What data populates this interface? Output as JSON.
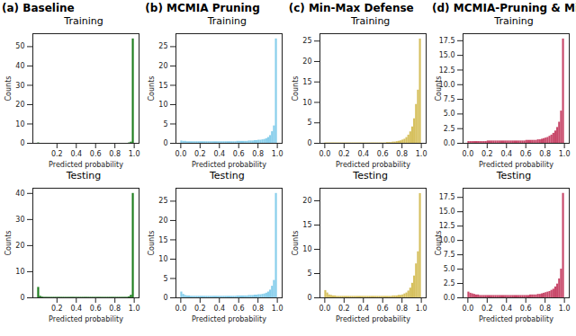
{
  "chart_data": [
    {
      "type": "histogram",
      "subtitle": "(a) Baseline",
      "title": "Training",
      "xlabel": "Predicted probability",
      "ylabel": "Counts",
      "color": "#1e7d1e",
      "bins": [
        0,
        0.02,
        0.04,
        0.06,
        0.08,
        0.1,
        0.12,
        0.14,
        0.16,
        0.18,
        0.2,
        0.22,
        0.24,
        0.26,
        0.28,
        0.3,
        0.32,
        0.34,
        0.36,
        0.38,
        0.4,
        0.42,
        0.44,
        0.46,
        0.48,
        0.5,
        0.52,
        0.54,
        0.56,
        0.58,
        0.6,
        0.62,
        0.64,
        0.66,
        0.68,
        0.7,
        0.72,
        0.74,
        0.76,
        0.78,
        0.8,
        0.82,
        0.84,
        0.86,
        0.88,
        0.9,
        0.92,
        0.94,
        0.96,
        0.98,
        1
      ],
      "counts": [
        0.2,
        0,
        0,
        0,
        0,
        0,
        0,
        0,
        0,
        0,
        0,
        0,
        0,
        0,
        0,
        0,
        0,
        0,
        0,
        0,
        0,
        0,
        0,
        0,
        0,
        0,
        0,
        0,
        0,
        0,
        0,
        0,
        0,
        0,
        0,
        0,
        0,
        0,
        0,
        0,
        0,
        0,
        0,
        0,
        0,
        0,
        0,
        0.2,
        0.6,
        54
      ],
      "xlim": [
        -0.05,
        1.05
      ],
      "xticks": [
        0.2,
        0.4,
        0.6,
        0.8,
        {
          "value": 1,
          "label": "1.0"
        }
      ],
      "ylim": [
        0,
        56.7
      ],
      "yticks": [
        0,
        10,
        20,
        30,
        40,
        50
      ]
    },
    {
      "type": "histogram",
      "title": "Testing",
      "xlabel": "Predicted probability",
      "ylabel": "Counts",
      "color": "#1e7d1e",
      "bins": [
        0,
        0.02,
        0.04,
        0.06,
        0.08,
        0.1,
        0.12,
        0.14,
        0.16,
        0.18,
        0.2,
        0.22,
        0.24,
        0.26,
        0.28,
        0.3,
        0.32,
        0.34,
        0.36,
        0.38,
        0.4,
        0.42,
        0.44,
        0.46,
        0.48,
        0.5,
        0.52,
        0.54,
        0.56,
        0.58,
        0.6,
        0.62,
        0.64,
        0.66,
        0.68,
        0.7,
        0.72,
        0.74,
        0.76,
        0.78,
        0.8,
        0.82,
        0.84,
        0.86,
        0.88,
        0.9,
        0.92,
        0.94,
        0.96,
        0.98,
        1
      ],
      "counts": [
        4,
        0.6,
        0.3,
        0.2,
        0.2,
        0.2,
        0.2,
        0.2,
        0.2,
        0.2,
        0.2,
        0.2,
        0.2,
        0.2,
        0.2,
        0.2,
        0.2,
        0.2,
        0.2,
        0.2,
        0.2,
        0.2,
        0.2,
        0.2,
        0.2,
        0.2,
        0.2,
        0.2,
        0.2,
        0.2,
        0.2,
        0.2,
        0.2,
        0.2,
        0.2,
        0.2,
        0.2,
        0.2,
        0.2,
        0.2,
        0.2,
        0.2,
        0.2,
        0.2,
        0.2,
        0.2,
        0.2,
        0.4,
        1.0,
        40
      ],
      "xlim": [
        -0.05,
        1.05
      ],
      "xticks": [
        0.2,
        0.4,
        0.6,
        0.8,
        {
          "value": 1,
          "label": "1.0"
        }
      ],
      "ylim": [
        0,
        42
      ],
      "yticks": [
        0,
        10,
        20,
        30,
        40
      ]
    },
    {
      "type": "histogram",
      "subtitle": "(b) MCMIA Pruning",
      "title": "Training",
      "xlabel": "Predicted probability",
      "ylabel": "Counts",
      "color": "#87ceeb",
      "bins": [
        0,
        0.02,
        0.04,
        0.06,
        0.08,
        0.1,
        0.12,
        0.14,
        0.16,
        0.18,
        0.2,
        0.22,
        0.24,
        0.26,
        0.28,
        0.3,
        0.32,
        0.34,
        0.36,
        0.38,
        0.4,
        0.42,
        0.44,
        0.46,
        0.48,
        0.5,
        0.52,
        0.54,
        0.56,
        0.58,
        0.6,
        0.62,
        0.64,
        0.66,
        0.68,
        0.7,
        0.72,
        0.74,
        0.76,
        0.78,
        0.8,
        0.82,
        0.84,
        0.86,
        0.88,
        0.9,
        0.92,
        0.94,
        0.96,
        0.98,
        1
      ],
      "counts": [
        0.6,
        0.5,
        0.5,
        0.4,
        0.4,
        0.4,
        0.4,
        0.4,
        0.4,
        0.4,
        0.4,
        0.4,
        0.4,
        0.4,
        0.4,
        0.4,
        0.4,
        0.4,
        0.4,
        0.4,
        0.4,
        0.4,
        0.4,
        0.4,
        0.4,
        0.4,
        0.4,
        0.4,
        0.4,
        0.5,
        0.5,
        0.5,
        0.5,
        0.5,
        0.5,
        0.6,
        0.6,
        0.6,
        0.7,
        0.7,
        0.8,
        0.8,
        0.9,
        1.0,
        1.2,
        1.5,
        2.0,
        3.0,
        4.5,
        27
      ],
      "xlim": [
        -0.05,
        1.05
      ],
      "xticks": [
        {
          "value": 0,
          "label": "0.0"
        },
        0.2,
        0.4,
        0.6,
        0.8,
        {
          "value": 1,
          "label": "1.0"
        }
      ],
      "ylim": [
        0,
        28.35
      ],
      "yticks": [
        0,
        5,
        10,
        15,
        20,
        25
      ]
    },
    {
      "type": "histogram",
      "title": "Testing",
      "xlabel": "Predicted probability",
      "ylabel": "Counts",
      "color": "#87ceeb",
      "bins": [
        0,
        0.02,
        0.04,
        0.06,
        0.08,
        0.1,
        0.12,
        0.14,
        0.16,
        0.18,
        0.2,
        0.22,
        0.24,
        0.26,
        0.28,
        0.3,
        0.32,
        0.34,
        0.36,
        0.38,
        0.4,
        0.42,
        0.44,
        0.46,
        0.48,
        0.5,
        0.52,
        0.54,
        0.56,
        0.58,
        0.6,
        0.62,
        0.64,
        0.66,
        0.68,
        0.7,
        0.72,
        0.74,
        0.76,
        0.78,
        0.8,
        0.82,
        0.84,
        0.86,
        0.88,
        0.9,
        0.92,
        0.94,
        0.96,
        0.98,
        1
      ],
      "counts": [
        1.5,
        0.9,
        0.6,
        0.5,
        0.5,
        0.4,
        0.4,
        0.4,
        0.4,
        0.4,
        0.4,
        0.4,
        0.4,
        0.4,
        0.4,
        0.4,
        0.4,
        0.4,
        0.4,
        0.4,
        0.4,
        0.4,
        0.4,
        0.4,
        0.4,
        0.4,
        0.4,
        0.4,
        0.4,
        0.5,
        0.5,
        0.5,
        0.5,
        0.5,
        0.5,
        0.6,
        0.6,
        0.6,
        0.7,
        0.7,
        0.8,
        0.8,
        0.9,
        1.0,
        1.2,
        1.5,
        2.0,
        3.0,
        4.5,
        27
      ],
      "xlim": [
        -0.05,
        1.05
      ],
      "xticks": [
        {
          "value": 0,
          "label": "0.0"
        },
        0.2,
        0.4,
        0.6,
        0.8,
        {
          "value": 1,
          "label": "1.0"
        }
      ],
      "ylim": [
        0,
        28.35
      ],
      "yticks": [
        0,
        5,
        10,
        15,
        20,
        25
      ]
    },
    {
      "type": "histogram",
      "subtitle": "(c) Min-Max Defense",
      "title": "Training",
      "xlabel": "Predicted probability",
      "ylabel": "Counts",
      "color": "#d6c05e",
      "bins": [
        0,
        0.02,
        0.04,
        0.06,
        0.08,
        0.1,
        0.12,
        0.14,
        0.16,
        0.18,
        0.2,
        0.22,
        0.24,
        0.26,
        0.28,
        0.3,
        0.32,
        0.34,
        0.36,
        0.38,
        0.4,
        0.42,
        0.44,
        0.46,
        0.48,
        0.5,
        0.52,
        0.54,
        0.56,
        0.58,
        0.6,
        0.62,
        0.64,
        0.66,
        0.68,
        0.7,
        0.72,
        0.74,
        0.76,
        0.78,
        0.8,
        0.82,
        0.84,
        0.86,
        0.88,
        0.9,
        0.92,
        0.94,
        0.96,
        0.98,
        1
      ],
      "counts": [
        0.1,
        0.1,
        0.1,
        0.1,
        0.1,
        0.1,
        0.1,
        0.1,
        0.1,
        0.1,
        0.1,
        0.1,
        0.1,
        0.1,
        0.1,
        0.1,
        0.1,
        0.1,
        0.1,
        0.1,
        0.1,
        0.1,
        0.1,
        0.1,
        0.1,
        0.1,
        0.1,
        0.1,
        0.1,
        0.1,
        0.1,
        0.1,
        0.2,
        0.2,
        0.2,
        0.3,
        0.3,
        0.4,
        0.5,
        0.6,
        0.8,
        1.0,
        1.4,
        2.0,
        2.8,
        4.0,
        6.0,
        9.5,
        13,
        25.5
      ],
      "xlim": [
        -0.05,
        1.05
      ],
      "xticks": [
        {
          "value": 0,
          "label": "0.0"
        },
        0.2,
        0.4,
        0.6,
        0.8,
        {
          "value": 1,
          "label": "1.0"
        }
      ],
      "ylim": [
        0,
        26.8
      ],
      "yticks": [
        0,
        5,
        10,
        15,
        20,
        25
      ]
    },
    {
      "type": "histogram",
      "title": "Testing",
      "xlabel": "Predicted probability",
      "ylabel": "Counts",
      "color": "#d6c05e",
      "bins": [
        0,
        0.02,
        0.04,
        0.06,
        0.08,
        0.1,
        0.12,
        0.14,
        0.16,
        0.18,
        0.2,
        0.22,
        0.24,
        0.26,
        0.28,
        0.3,
        0.32,
        0.34,
        0.36,
        0.38,
        0.4,
        0.42,
        0.44,
        0.46,
        0.48,
        0.5,
        0.52,
        0.54,
        0.56,
        0.58,
        0.6,
        0.62,
        0.64,
        0.66,
        0.68,
        0.7,
        0.72,
        0.74,
        0.76,
        0.78,
        0.8,
        0.82,
        0.84,
        0.86,
        0.88,
        0.9,
        0.92,
        0.94,
        0.96,
        0.98,
        1
      ],
      "counts": [
        1.5,
        1.0,
        0.6,
        0.5,
        0.4,
        0.4,
        0.3,
        0.3,
        0.3,
        0.3,
        0.3,
        0.3,
        0.3,
        0.3,
        0.3,
        0.3,
        0.3,
        0.3,
        0.3,
        0.3,
        0.3,
        0.3,
        0.3,
        0.3,
        0.3,
        0.3,
        0.3,
        0.3,
        0.3,
        0.3,
        0.3,
        0.3,
        0.3,
        0.3,
        0.3,
        0.4,
        0.4,
        0.4,
        0.5,
        0.5,
        0.6,
        0.8,
        1.0,
        1.4,
        2.0,
        3.0,
        4.5,
        7.0,
        9.5,
        21.5
      ],
      "xlim": [
        -0.05,
        1.05
      ],
      "xticks": [
        {
          "value": 0,
          "label": "0.0"
        },
        0.2,
        0.4,
        0.6,
        0.8,
        {
          "value": 1,
          "label": "1.0"
        }
      ],
      "ylim": [
        0,
        22.6
      ],
      "yticks": [
        0,
        5,
        10,
        15,
        20
      ]
    },
    {
      "type": "histogram",
      "subtitle": "(d) MCMIA-Pruning & Min-Max",
      "title": "Training",
      "xlabel": "Predicted probability",
      "ylabel": "Counts",
      "color": "#c8486a",
      "bins": [
        0,
        0.02,
        0.04,
        0.06,
        0.08,
        0.1,
        0.12,
        0.14,
        0.16,
        0.18,
        0.2,
        0.22,
        0.24,
        0.26,
        0.28,
        0.3,
        0.32,
        0.34,
        0.36,
        0.38,
        0.4,
        0.42,
        0.44,
        0.46,
        0.48,
        0.5,
        0.52,
        0.54,
        0.56,
        0.58,
        0.6,
        0.62,
        0.64,
        0.66,
        0.68,
        0.7,
        0.72,
        0.74,
        0.76,
        0.78,
        0.8,
        0.82,
        0.84,
        0.86,
        0.88,
        0.9,
        0.92,
        0.94,
        0.96,
        0.98,
        1
      ],
      "counts": [
        0.3,
        0.3,
        0.3,
        0.3,
        0.3,
        0.3,
        0.3,
        0.3,
        0.3,
        0.3,
        0.4,
        0.4,
        0.4,
        0.4,
        0.4,
        0.4,
        0.4,
        0.4,
        0.4,
        0.4,
        0.4,
        0.4,
        0.4,
        0.4,
        0.4,
        0.4,
        0.4,
        0.4,
        0.4,
        0.4,
        0.5,
        0.5,
        0.5,
        0.5,
        0.5,
        0.5,
        0.6,
        0.6,
        0.7,
        0.8,
        0.9,
        1.0,
        1.2,
        1.4,
        1.7,
        2.1,
        2.7,
        3.6,
        5.5,
        17.8
      ],
      "xlim": [
        -0.05,
        1.05
      ],
      "xticks": [
        {
          "value": 0,
          "label": "0.0"
        },
        0.2,
        0.4,
        0.6,
        0.8,
        {
          "value": 1,
          "label": "1.0"
        }
      ],
      "ylim": [
        0,
        18.7
      ],
      "yticks": [
        {
          "value": 0,
          "label": "0.0"
        },
        2.5,
        {
          "value": 5,
          "label": "5.0"
        },
        7.5,
        {
          "value": 10,
          "label": "10.0"
        },
        12.5,
        {
          "value": 15,
          "label": "15.0"
        },
        17.5
      ]
    },
    {
      "type": "histogram",
      "title": "Testing",
      "xlabel": "Predicted probability",
      "ylabel": "Counts",
      "color": "#c8486a",
      "bins": [
        0,
        0.02,
        0.04,
        0.06,
        0.08,
        0.1,
        0.12,
        0.14,
        0.16,
        0.18,
        0.2,
        0.22,
        0.24,
        0.26,
        0.28,
        0.3,
        0.32,
        0.34,
        0.36,
        0.38,
        0.4,
        0.42,
        0.44,
        0.46,
        0.48,
        0.5,
        0.52,
        0.54,
        0.56,
        0.58,
        0.6,
        0.62,
        0.64,
        0.66,
        0.68,
        0.7,
        0.72,
        0.74,
        0.76,
        0.78,
        0.8,
        0.82,
        0.84,
        0.86,
        0.88,
        0.9,
        0.92,
        0.94,
        0.96,
        0.98,
        1
      ],
      "counts": [
        1.0,
        0.8,
        0.7,
        0.6,
        0.5,
        0.5,
        0.4,
        0.4,
        0.4,
        0.4,
        0.4,
        0.4,
        0.4,
        0.4,
        0.4,
        0.4,
        0.4,
        0.4,
        0.4,
        0.4,
        0.4,
        0.4,
        0.4,
        0.4,
        0.4,
        0.4,
        0.4,
        0.4,
        0.4,
        0.4,
        0.4,
        0.4,
        0.5,
        0.5,
        0.5,
        0.5,
        0.6,
        0.6,
        0.7,
        0.8,
        0.9,
        1.0,
        1.1,
        1.3,
        1.5,
        1.9,
        2.4,
        3.3,
        5.0,
        18.2
      ],
      "xlim": [
        -0.05,
        1.05
      ],
      "xticks": [
        {
          "value": 0,
          "label": "0.0"
        },
        0.2,
        0.4,
        0.6,
        0.8,
        {
          "value": 1,
          "label": "1.0"
        }
      ],
      "ylim": [
        0,
        19.1
      ],
      "yticks": [
        {
          "value": 0,
          "label": "0.0"
        },
        2.5,
        {
          "value": 5,
          "label": "5.0"
        },
        7.5,
        {
          "value": 10,
          "label": "10.0"
        },
        12.5,
        {
          "value": 15,
          "label": "15.0"
        },
        17.5
      ]
    }
  ]
}
